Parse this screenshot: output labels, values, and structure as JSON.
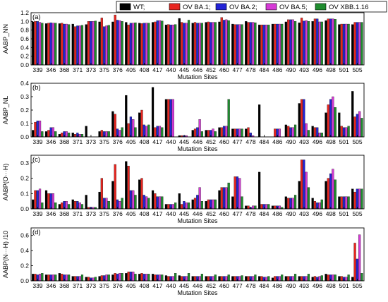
{
  "chart_data": {
    "type": "bar",
    "categories": [
      "339",
      "346",
      "368",
      "371",
      "373",
      "375",
      "376",
      "405",
      "408",
      "417",
      "440",
      "445",
      "446",
      "452",
      "460",
      "477",
      "478",
      "484",
      "486",
      "490",
      "493",
      "496",
      "498",
      "501",
      "505"
    ],
    "xlabel": "Mutation Sites",
    "legend": {
      "placement": "top",
      "entries": [
        {
          "name": "WT;",
          "color": "#000000"
        },
        {
          "name": "OV BA.1;",
          "color": "#e8251f"
        },
        {
          "name": "OV BA.2;",
          "color": "#2323d6"
        },
        {
          "name": "OV BA.5;",
          "color": "#d63ad6"
        },
        {
          "name": "OV XBB.1.16",
          "color": "#1e8c2e"
        }
      ]
    },
    "panels": [
      {
        "tag": "(a)",
        "ylabel": "AABP_NN",
        "ylim": [
          0,
          1.2
        ],
        "yticks": [
          "0.0",
          "0.2",
          "0.4",
          "0.6",
          "0.8",
          "1.0",
          "1.2"
        ],
        "series": [
          {
            "name": "WT;",
            "values": [
              0.99,
              0.95,
              0.95,
              0.94,
              0.93,
              0.99,
              0.99,
              0.98,
              0.96,
              0.98,
              0.92,
              1.07,
              0.96,
              0.98,
              0.99,
              0.94,
              1.0,
              0.92,
              0.94,
              0.99,
              0.97,
              1.0,
              1.02,
              0.93,
              0.93
            ]
          },
          {
            "name": "OV BA.1;",
            "values": [
              1.0,
              0.96,
              0.96,
              0.88,
              1.0,
              1.08,
              1.15,
              0.92,
              0.95,
              0.99,
              0.93,
              0.98,
              0.98,
              0.99,
              1.09,
              0.93,
              0.98,
              0.92,
              0.94,
              1.04,
              1.08,
              1.06,
              1.06,
              0.94,
              0.98
            ]
          },
          {
            "name": "OV BA.2;",
            "values": [
              1.0,
              0.97,
              0.94,
              0.9,
              1.0,
              0.88,
              1.03,
              0.96,
              0.96,
              1.02,
              0.92,
              0.96,
              0.96,
              0.98,
              1.03,
              0.93,
              0.98,
              0.92,
              0.94,
              1.04,
              1.01,
              1.06,
              1.06,
              0.94,
              0.98
            ]
          },
          {
            "name": "OV BA.5;",
            "values": [
              0.98,
              0.96,
              0.94,
              0.9,
              1.0,
              0.9,
              1.02,
              0.96,
              0.96,
              1.02,
              0.92,
              0.96,
              0.96,
              0.98,
              1.04,
              0.93,
              0.98,
              0.92,
              0.94,
              1.04,
              1.02,
              0.99,
              1.06,
              0.94,
              0.98
            ]
          },
          {
            "name": "OV XBB.1.16",
            "values": [
              0.96,
              0.96,
              0.93,
              0.91,
              1.01,
              0.91,
              1.0,
              0.97,
              0.96,
              1.01,
              0.93,
              1.03,
              0.96,
              0.98,
              1.02,
              0.93,
              0.97,
              0.92,
              0.94,
              1.0,
              1.0,
              0.99,
              1.05,
              0.94,
              0.98
            ]
          }
        ]
      },
      {
        "tag": "(b)",
        "ylabel": "AABP_NL",
        "ylim": [
          0,
          0.4
        ],
        "yticks": [
          "0.0",
          "0.1",
          "0.2",
          "0.3",
          "0.4"
        ],
        "series": [
          {
            "name": "WT;",
            "values": [
              0.05,
              0.04,
              0.02,
              0.03,
              0.08,
              0.04,
              0.19,
              0.31,
              0.18,
              0.37,
              0.28,
              0.01,
              0.05,
              0.05,
              0.07,
              0.06,
              0.06,
              0.24,
              0.0,
              0.09,
              0.25,
              0.08,
              0.18,
              0.18,
              0.34
            ]
          },
          {
            "name": "OV BA.1;",
            "values": [
              0.11,
              0.05,
              0.03,
              0.02,
              0.0,
              0.05,
              0.17,
              0.1,
              0.2,
              0.07,
              0.28,
              0.01,
              0.06,
              0.05,
              0.07,
              0.06,
              0.07,
              0.0,
              0.06,
              0.08,
              0.28,
              0.07,
              0.24,
              0.08,
              0.15
            ]
          },
          {
            "name": "OV BA.2;",
            "values": [
              0.12,
              0.07,
              0.04,
              0.03,
              0.0,
              0.04,
              0.06,
              0.15,
              0.09,
              0.08,
              0.28,
              0.01,
              0.07,
              0.05,
              0.08,
              0.06,
              0.03,
              0.0,
              0.06,
              0.07,
              0.28,
              0.07,
              0.28,
              0.07,
              0.17
            ]
          },
          {
            "name": "OV BA.5;",
            "values": [
              0.12,
              0.07,
              0.04,
              0.02,
              0.0,
              0.04,
              0.05,
              0.13,
              0.08,
              0.08,
              0.28,
              0.01,
              0.13,
              0.06,
              0.08,
              0.06,
              0.01,
              0.0,
              0.06,
              0.07,
              0.1,
              0.03,
              0.3,
              0.07,
              0.19
            ]
          },
          {
            "name": "OV XBB.1.16",
            "values": [
              0.04,
              0.04,
              0.03,
              0.02,
              0.0,
              0.04,
              0.07,
              0.07,
              0.09,
              0.07,
              0.0,
              0.0,
              0.04,
              0.04,
              0.28,
              0.06,
              0.0,
              0.0,
              0.0,
              0.09,
              0.05,
              0.03,
              0.22,
              0.08,
              0.14
            ]
          }
        ]
      },
      {
        "tag": "(c)",
        "ylabel": "AABP(O···H)",
        "ylim": [
          0,
          0.35
        ],
        "yticks": [
          "0.0",
          "0.1",
          "0.2",
          "0.3"
        ],
        "series": [
          {
            "name": "WT;",
            "values": [
              0.06,
              0.12,
              0.03,
              0.06,
              0.09,
              0.11,
              0.18,
              0.31,
              0.19,
              0.12,
              0.03,
              0.1,
              0.06,
              0.05,
              0.12,
              0.08,
              0.02,
              0.24,
              0.02,
              0.08,
              0.18,
              0.07,
              0.18,
              0.08,
              0.13
            ]
          },
          {
            "name": "OV BA.1;",
            "values": [
              0.12,
              0.1,
              0.04,
              0.05,
              0.01,
              0.2,
              0.29,
              0.28,
              0.2,
              0.1,
              0.03,
              0.03,
              0.07,
              0.06,
              0.14,
              0.21,
              0.02,
              0.03,
              0.02,
              0.07,
              0.32,
              0.05,
              0.2,
              0.08,
              0.11
            ]
          },
          {
            "name": "OV BA.2;",
            "values": [
              0.12,
              0.1,
              0.05,
              0.05,
              0.01,
              0.07,
              0.06,
              0.12,
              0.09,
              0.08,
              0.03,
              0.05,
              0.09,
              0.06,
              0.14,
              0.21,
              0.01,
              0.03,
              0.02,
              0.07,
              0.32,
              0.04,
              0.23,
              0.08,
              0.13
            ]
          },
          {
            "name": "OV BA.5;",
            "values": [
              0.13,
              0.1,
              0.05,
              0.04,
              0.01,
              0.07,
              0.05,
              0.12,
              0.08,
              0.08,
              0.03,
              0.04,
              0.14,
              0.06,
              0.14,
              0.2,
              0.02,
              0.03,
              0.02,
              0.07,
              0.24,
              0.04,
              0.26,
              0.08,
              0.13
            ]
          },
          {
            "name": "OV XBB.1.16",
            "values": [
              0.04,
              0.04,
              0.03,
              0.03,
              0.01,
              0.05,
              0.07,
              0.09,
              0.07,
              0.08,
              0.04,
              0.04,
              0.05,
              0.06,
              0.17,
              0.08,
              0.02,
              0.03,
              0.01,
              0.09,
              0.14,
              0.06,
              0.19,
              0.08,
              0.13
            ]
          }
        ]
      },
      {
        "tag": "(d)",
        "ylabel": "AABP(N···H) /10",
        "ylim": [
          0,
          0.7
        ],
        "yticks": [
          "0.0",
          "0.2",
          "0.4",
          "0.6"
        ],
        "series": [
          {
            "name": "WT;",
            "values": [
              0.09,
              0.08,
              0.1,
              0.06,
              0.05,
              0.06,
              0.08,
              0.1,
              0.09,
              0.09,
              0.07,
              0.07,
              0.06,
              0.06,
              0.06,
              0.06,
              0.06,
              0.06,
              0.04,
              0.06,
              0.06,
              0.05,
              0.09,
              0.06,
              0.05
            ]
          },
          {
            "name": "OV BA.1;",
            "values": [
              0.09,
              0.08,
              0.09,
              0.06,
              0.05,
              0.07,
              0.1,
              0.12,
              0.1,
              0.08,
              0.06,
              0.06,
              0.06,
              0.06,
              0.06,
              0.06,
              0.06,
              0.06,
              0.06,
              0.06,
              0.06,
              0.06,
              0.08,
              0.06,
              0.5
            ]
          },
          {
            "name": "OV BA.2;",
            "values": [
              0.08,
              0.08,
              0.08,
              0.06,
              0.04,
              0.07,
              0.09,
              0.12,
              0.09,
              0.08,
              0.06,
              0.06,
              0.06,
              0.06,
              0.06,
              0.06,
              0.06,
              0.05,
              0.06,
              0.06,
              0.06,
              0.05,
              0.08,
              0.05,
              0.29
            ]
          },
          {
            "name": "OV BA.5;",
            "values": [
              0.09,
              0.08,
              0.08,
              0.06,
              0.04,
              0.08,
              0.1,
              0.12,
              0.09,
              0.08,
              0.06,
              0.06,
              0.06,
              0.06,
              0.06,
              0.06,
              0.06,
              0.05,
              0.06,
              0.06,
              0.06,
              0.06,
              0.08,
              0.05,
              0.61
            ]
          },
          {
            "name": "OV XBB.1.16",
            "values": [
              0.1,
              0.08,
              0.08,
              0.08,
              0.05,
              0.08,
              0.1,
              0.09,
              0.09,
              0.08,
              0.1,
              0.1,
              0.09,
              0.08,
              0.08,
              0.07,
              0.08,
              0.06,
              0.08,
              0.09,
              0.09,
              0.07,
              0.08,
              0.08,
              0.1
            ]
          }
        ]
      }
    ]
  }
}
